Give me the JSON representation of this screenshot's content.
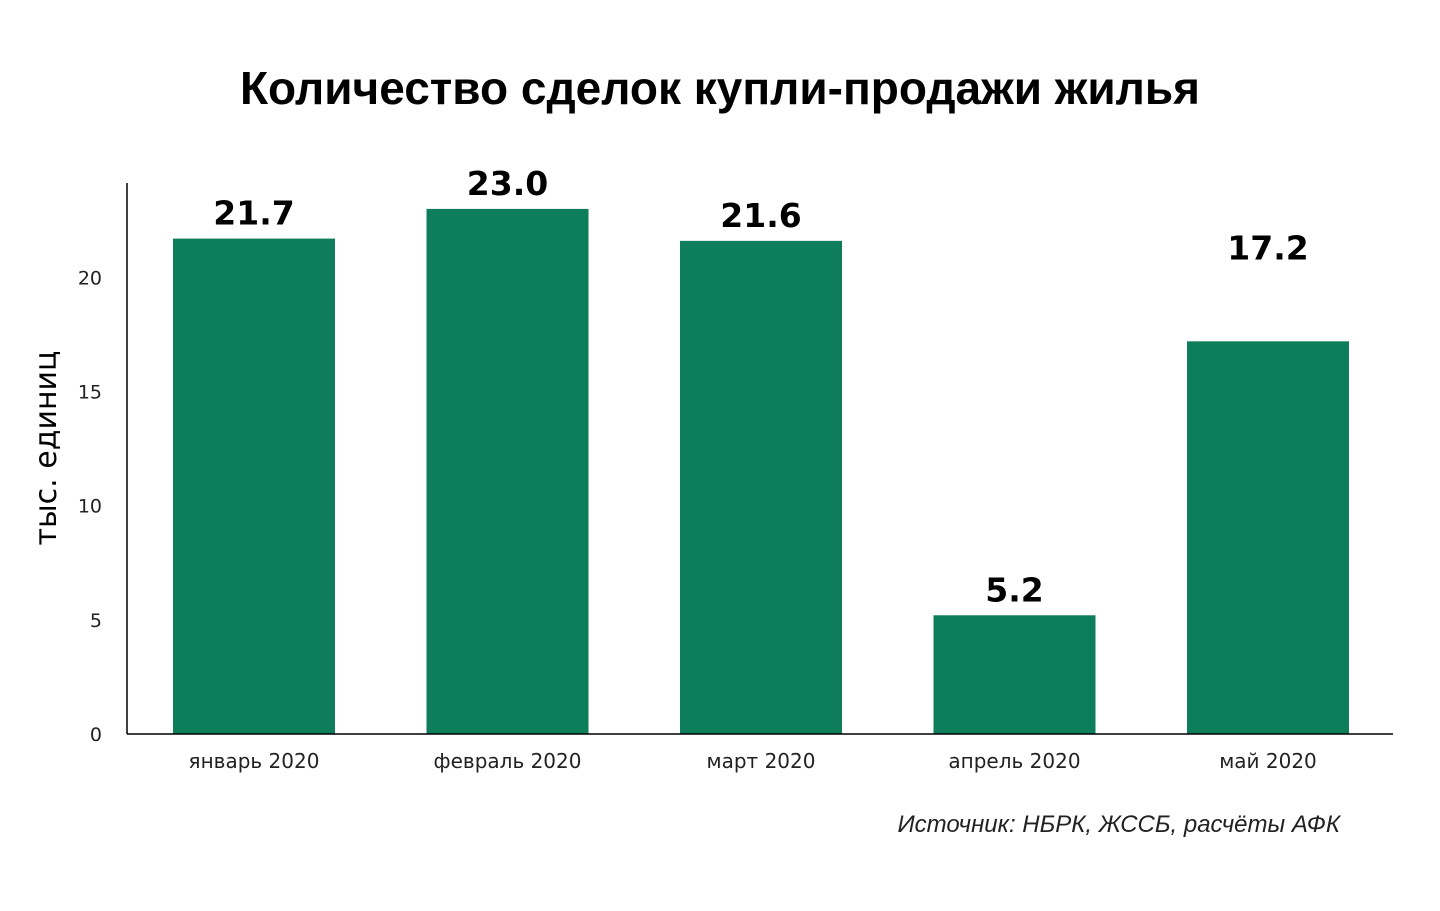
{
  "chart_data": {
    "type": "bar",
    "title": "Количество сделок купли-продажи жилья",
    "ylabel": "тыс. единиц",
    "xlabel": "",
    "categories": [
      "январь 2020",
      "февраль 2020",
      "март 2020",
      "апрель 2020",
      "май 2020"
    ],
    "values": [
      21.7,
      23.0,
      21.6,
      5.2,
      17.2
    ],
    "value_labels": [
      "21.7",
      "23.0",
      "21.6",
      "5.2",
      "17.2"
    ],
    "ylim": [
      0,
      24
    ],
    "yticks": [
      0,
      5,
      10,
      15,
      20
    ],
    "ytick_labels": [
      "0",
      "5",
      "10",
      "15",
      "20"
    ],
    "grid": false,
    "bar_color": "#0e7e5a",
    "source": "Источник: НБРК, ЖССБ, расчёты АФК"
  }
}
